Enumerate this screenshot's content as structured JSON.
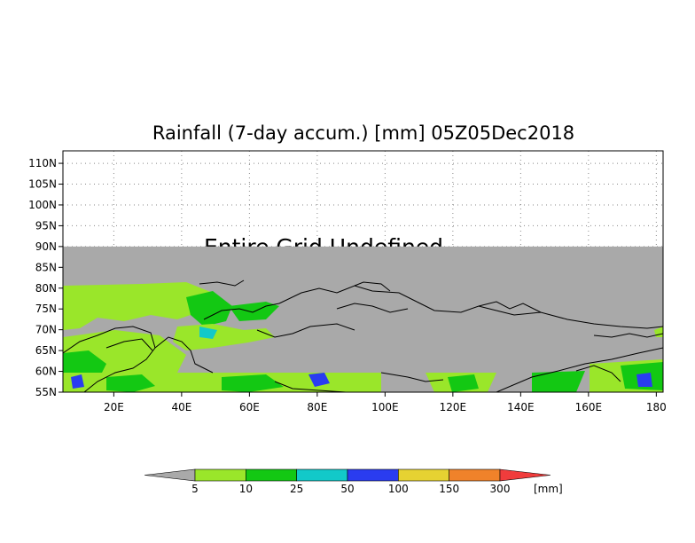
{
  "title": "Rainfall (7-day accum.) [mm] 05Z05Dec2018",
  "overlay_message": "Entire Grid Undefined",
  "map": {
    "lon_range": [
      5,
      182
    ],
    "lat_range": [
      55,
      113
    ],
    "data_top_lat": 90,
    "undefined_color": "#a9a9a9",
    "x_ticks": [
      "20E",
      "40E",
      "60E",
      "80E",
      "100E",
      "120E",
      "140E",
      "160E",
      "180"
    ],
    "x_tick_values": [
      20,
      40,
      60,
      80,
      100,
      120,
      140,
      160,
      180
    ],
    "y_ticks": [
      "55N",
      "60N",
      "65N",
      "70N",
      "75N",
      "80N",
      "85N",
      "90N",
      "95N",
      "100N",
      "105N",
      "110N"
    ],
    "y_tick_values": [
      55,
      60,
      65,
      70,
      75,
      80,
      85,
      90,
      95,
      100,
      105,
      110
    ],
    "grid": true
  },
  "legend": {
    "unit": "[mm]",
    "bins": [
      {
        "color": "#a9a9a9"
      },
      {
        "color": "#9ae62a"
      },
      {
        "color": "#13c813"
      },
      {
        "color": "#12c9c9"
      },
      {
        "color": "#2a3cf0"
      },
      {
        "color": "#e6d232"
      },
      {
        "color": "#f0822a"
      },
      {
        "color": "#f03c3c"
      }
    ],
    "labels": [
      "5",
      "10",
      "25",
      "50",
      "100",
      "150",
      "300"
    ]
  }
}
